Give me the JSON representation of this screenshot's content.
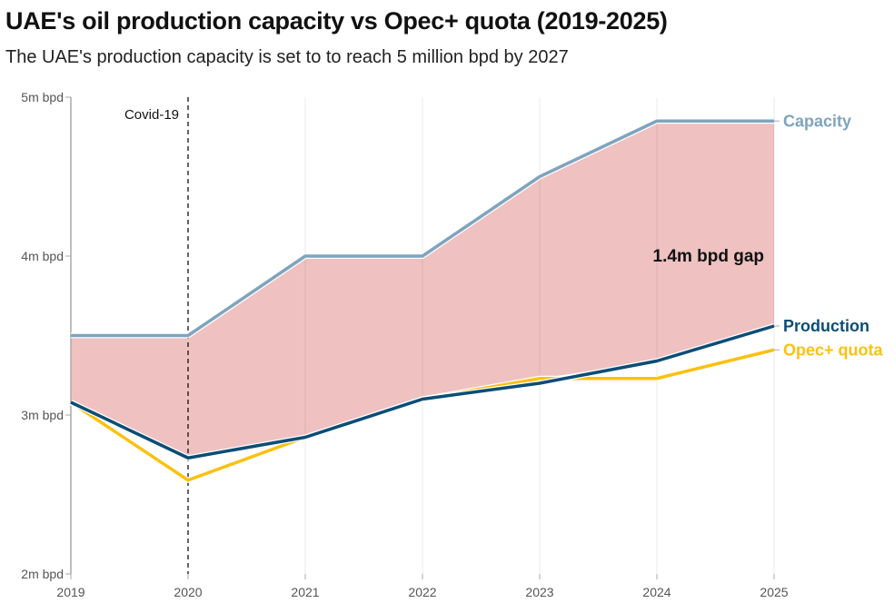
{
  "chart_data": {
    "type": "line",
    "title": "UAE's oil production capacity vs Opec+ quota (2019-2025)",
    "subtitle": "The UAE's production capacity is set to to reach 5 million bpd by 2027",
    "x": [
      "2019",
      "2020",
      "2021",
      "2022",
      "2023",
      "2024",
      "2025"
    ],
    "ylim": [
      2,
      5
    ],
    "yticks": [
      {
        "v": 2,
        "label": "2m bpd"
      },
      {
        "v": 3,
        "label": "3m bpd"
      },
      {
        "v": 4,
        "label": "4m bpd"
      },
      {
        "v": 5,
        "label": "5m bpd"
      }
    ],
    "series": [
      {
        "name": "Capacity",
        "color": "#7fa4be",
        "values": [
          3.5,
          3.5,
          4.0,
          4.0,
          4.5,
          4.85,
          4.85
        ]
      },
      {
        "name": "Production",
        "color": "#0b4d76",
        "values": [
          3.08,
          2.73,
          2.86,
          3.1,
          3.2,
          3.34,
          3.56
        ]
      },
      {
        "name": "Opec+ quota",
        "color": "#fcc10f",
        "values": [
          3.08,
          2.59,
          2.86,
          3.1,
          3.23,
          3.23,
          3.41
        ]
      }
    ],
    "gap_fill_color": "#efc1c1",
    "annotations": [
      {
        "text": "Covid-19",
        "x": "2020"
      },
      {
        "text": "1.4m bpd gap",
        "x": "2024"
      }
    ]
  }
}
